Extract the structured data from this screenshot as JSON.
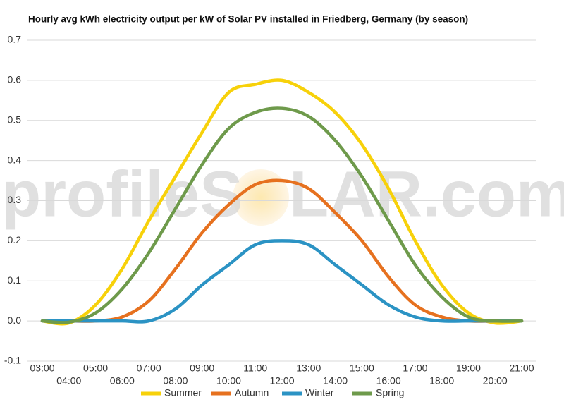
{
  "chart_data": {
    "type": "line",
    "title": "Hourly avg kWh electricity output per kW of Solar PV installed in Friedberg, Germany (by season)",
    "watermark": [
      "profileS",
      "LAR.com"
    ],
    "categories": [
      "03:00",
      "04:00",
      "05:00",
      "06:00",
      "07:00",
      "08:00",
      "09:00",
      "10:00",
      "11:00",
      "12:00",
      "13:00",
      "14:00",
      "15:00",
      "16:00",
      "17:00",
      "18:00",
      "19:00",
      "20:00",
      "21:00"
    ],
    "series": [
      {
        "name": "Summer",
        "color": "#f7d10a",
        "values": [
          0,
          -0.005,
          0.04,
          0.13,
          0.25,
          0.36,
          0.47,
          0.57,
          0.59,
          0.6,
          0.57,
          0.52,
          0.44,
          0.33,
          0.2,
          0.09,
          0.02,
          -0.005,
          0
        ]
      },
      {
        "name": "Autumn",
        "color": "#e6711f",
        "values": [
          0,
          0,
          0,
          0.01,
          0.05,
          0.13,
          0.22,
          0.29,
          0.34,
          0.35,
          0.33,
          0.27,
          0.2,
          0.11,
          0.04,
          0.01,
          0,
          0,
          0
        ]
      },
      {
        "name": "Winter",
        "color": "#2b93c4",
        "values": [
          0,
          0,
          0,
          0,
          0,
          0.03,
          0.09,
          0.14,
          0.19,
          0.2,
          0.19,
          0.14,
          0.09,
          0.04,
          0.01,
          0,
          0,
          0,
          0
        ]
      },
      {
        "name": "Spring",
        "color": "#6e9a4b",
        "values": [
          0,
          -0.003,
          0.02,
          0.08,
          0.17,
          0.28,
          0.39,
          0.48,
          0.52,
          0.53,
          0.51,
          0.45,
          0.36,
          0.25,
          0.14,
          0.06,
          0.01,
          0,
          0
        ]
      }
    ],
    "ylim": [
      -0.1,
      0.7
    ],
    "yticks": [
      -0.1,
      {
        "value": 0,
        "label": "0.0"
      },
      0.1,
      0.2,
      0.3,
      0.4,
      0.5,
      0.6,
      0.7
    ],
    "grid": true,
    "legend": "bottom"
  }
}
